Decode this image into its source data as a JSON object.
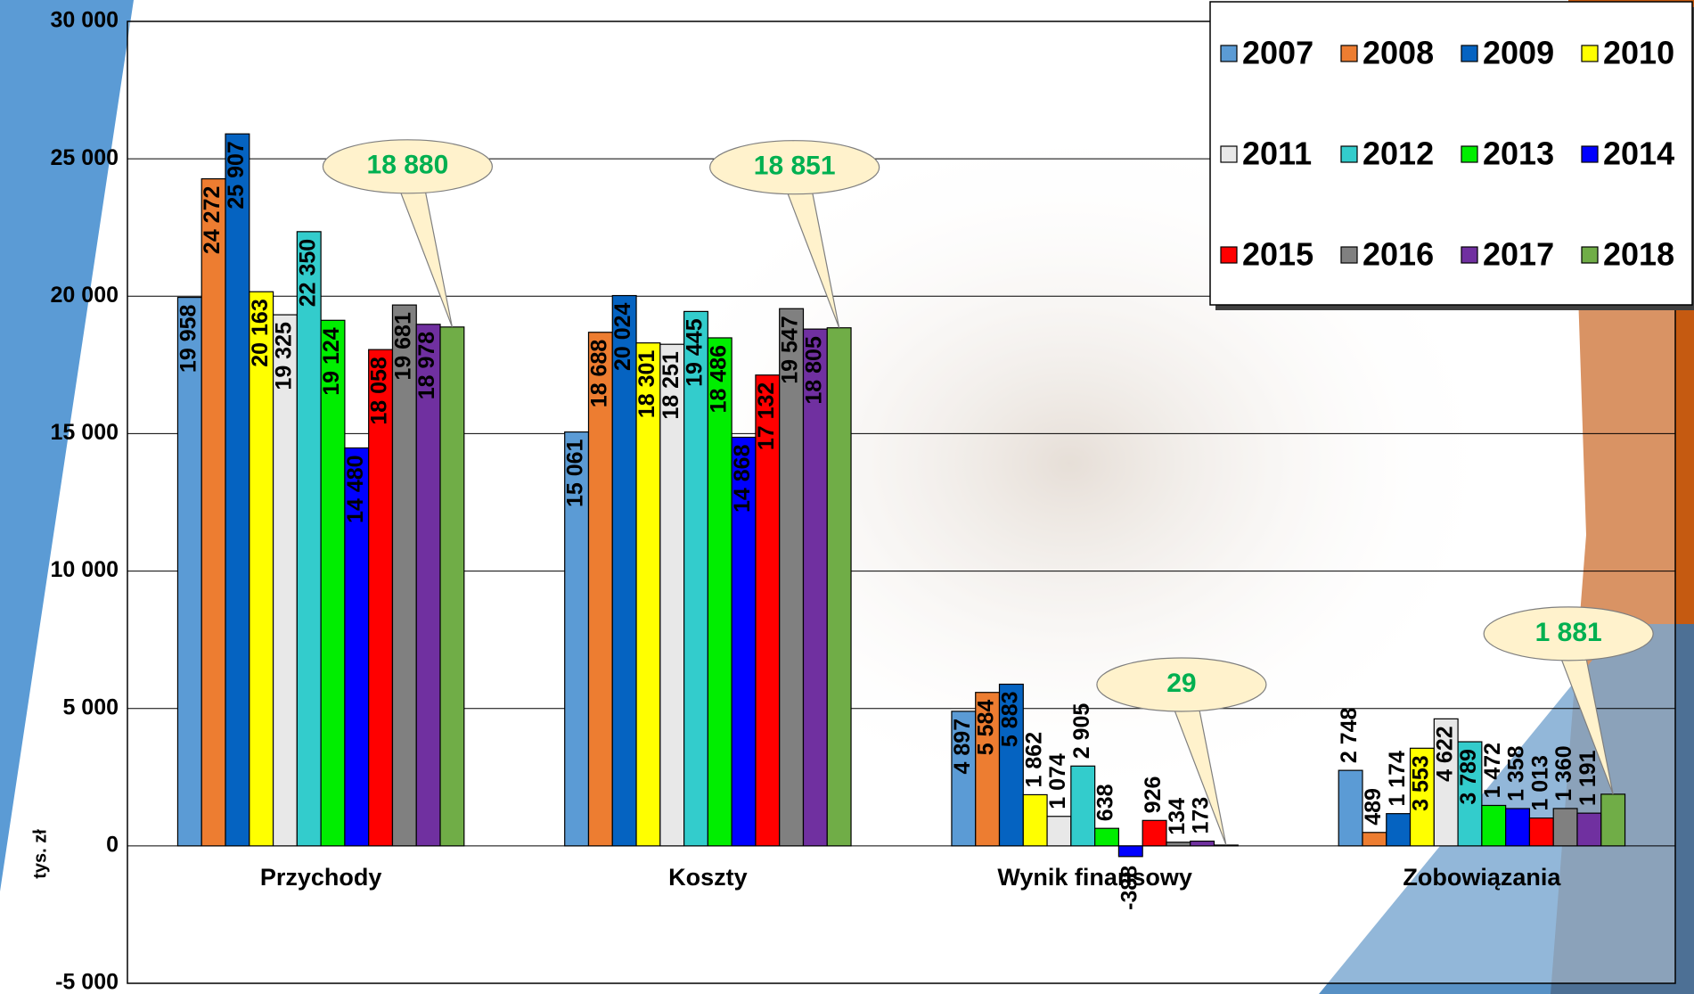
{
  "chart_data": {
    "type": "bar",
    "y_axis_label": "tys. zł",
    "categories": [
      "Przychody",
      "Koszty",
      "Wynik finansowy",
      "Zobowiązania"
    ],
    "series": [
      {
        "name": "2007",
        "color": "#5b9bd5",
        "values": [
          19958,
          15061,
          4897,
          2748
        ],
        "value_labels": [
          "19 958",
          "15 061",
          "4 897",
          "2 748"
        ]
      },
      {
        "name": "2008",
        "color": "#ed7d31",
        "values": [
          24272,
          18688,
          5584,
          489
        ],
        "value_labels": [
          "24 272",
          "18 688",
          "5 584",
          "489"
        ]
      },
      {
        "name": "2009",
        "color": "#0563c1",
        "values": [
          25907,
          20024,
          5883,
          1174
        ],
        "value_labels": [
          "25 907",
          "20 024",
          "5 883",
          "1 174"
        ]
      },
      {
        "name": "2010",
        "color": "#ffff00",
        "values": [
          20163,
          18301,
          1862,
          3553
        ],
        "value_labels": [
          "20 163",
          "18 301",
          "1 862",
          "3 553"
        ]
      },
      {
        "name": "2011",
        "color": "#e8e8e8",
        "values": [
          19325,
          18251,
          1074,
          4622
        ],
        "value_labels": [
          "19 325",
          "18 251",
          "1 074",
          "4 622"
        ]
      },
      {
        "name": "2012",
        "color": "#33cccc",
        "values": [
          22350,
          19445,
          2905,
          3789
        ],
        "value_labels": [
          "22 350",
          "19 445",
          "2 905",
          "3 789"
        ]
      },
      {
        "name": "2013",
        "color": "#00ee00",
        "values": [
          19124,
          18486,
          638,
          1472
        ],
        "value_labels": [
          "19 124",
          "18 486",
          "638",
          "1 472"
        ]
      },
      {
        "name": "2014",
        "color": "#0000ff",
        "values": [
          14480,
          14868,
          -388,
          1358
        ],
        "value_labels": [
          "14 480",
          "14 868",
          "-388",
          "1 358"
        ]
      },
      {
        "name": "2015",
        "color": "#ff0000",
        "values": [
          18058,
          17132,
          926,
          1013
        ],
        "value_labels": [
          "18 058",
          "17 132",
          "926",
          "1 013"
        ]
      },
      {
        "name": "2016",
        "color": "#808080",
        "values": [
          19681,
          19547,
          134,
          1360
        ],
        "value_labels": [
          "19 681",
          "19 547",
          "134",
          "1 360"
        ]
      },
      {
        "name": "2017",
        "color": "#7030a0",
        "values": [
          18978,
          18805,
          173,
          1191
        ],
        "value_labels": [
          "18 978",
          "18 805",
          "173",
          "1 191"
        ]
      },
      {
        "name": "2018",
        "color": "#70ad47",
        "values": [
          18880,
          18851,
          29,
          1881
        ],
        "value_labels": [
          "18 880",
          "18 851",
          "29",
          "1 881"
        ]
      }
    ],
    "ylim": [
      -5000,
      30000
    ],
    "yticks": [
      {
        "value": -5000,
        "label": "-5 000"
      },
      0,
      {
        "value": 5000,
        "label": "5 000"
      },
      {
        "value": 10000,
        "label": "10 000"
      },
      {
        "value": 15000,
        "label": "15 000"
      },
      {
        "value": 20000,
        "label": "20 000"
      },
      {
        "value": 25000,
        "label": "25 000"
      },
      {
        "value": 30000,
        "label": "30 000"
      }
    ],
    "grid": true,
    "legend": "top-right"
  }
}
